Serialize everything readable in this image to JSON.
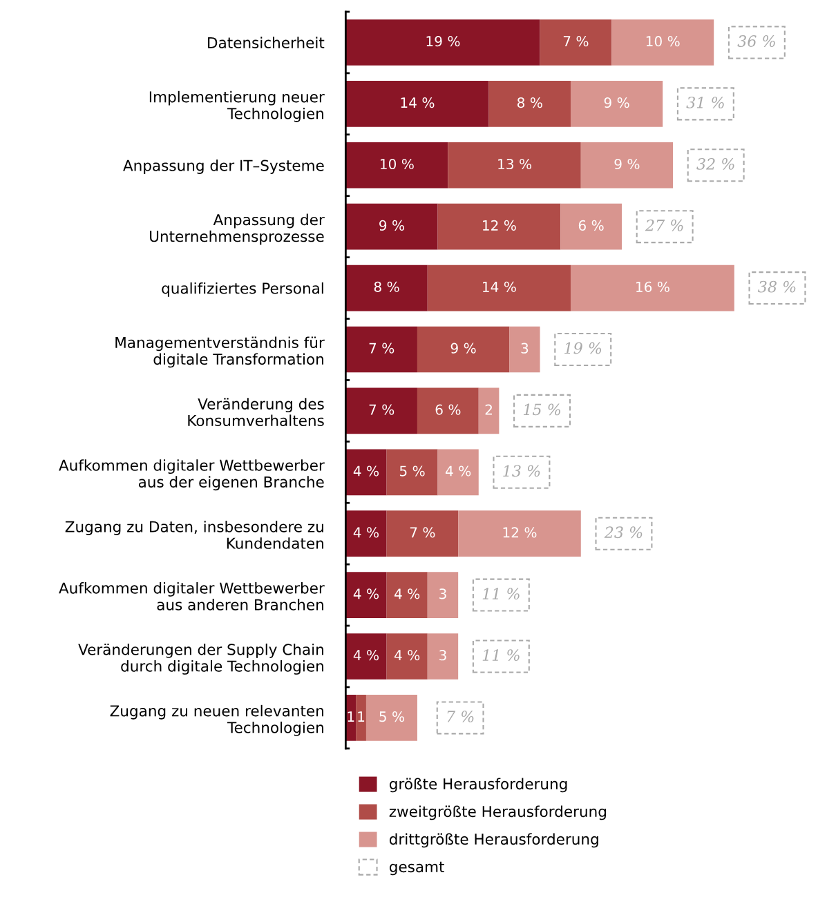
{
  "chart_data": {
    "type": "bar",
    "orientation": "horizontal",
    "stacked": true,
    "categories": [
      "Datensicherheit",
      "Implementierung neuer\nTechnologien",
      "Anpassung der IT–Systeme",
      "Anpassung der\nUnternehmensprozesse",
      "qualifiziertes Personal",
      "Managementverständnis für\ndigitale Transformation",
      "Veränderung des\nKonsumverhaltens",
      "Aufkommen digitaler Wettbewerber\naus der eigenen Branche",
      "Zugang zu Daten, insbesondere zu\nKundendaten",
      "Aufkommen digitaler Wettbewerber\naus anderen Branchen",
      "Veränderungen der Supply Chain\ndurch digitale Technologien",
      "Zugang zu neuen relevanten\nTechnologien"
    ],
    "series": [
      {
        "name": "größte Herausforderung",
        "color": "#8a1526",
        "values": [
          19,
          14,
          10,
          9,
          8,
          7,
          7,
          4,
          4,
          4,
          4,
          1
        ],
        "value_labels": [
          "19 %",
          "14 %",
          "10 %",
          "9 %",
          "8 %",
          "7 %",
          "7 %",
          "4 %",
          "4 %",
          "4 %",
          "4 %",
          "1"
        ]
      },
      {
        "name": "zweitgrößte Herausforderung",
        "color": "#b04c48",
        "values": [
          7,
          8,
          13,
          12,
          14,
          9,
          6,
          5,
          7,
          4,
          4,
          1
        ],
        "value_labels": [
          "7 %",
          "8 %",
          "13 %",
          "12 %",
          "14 %",
          "9 %",
          "6 %",
          "5 %",
          "7 %",
          "4 %",
          "4 %",
          "1"
        ]
      },
      {
        "name": "drittgrößte Herausforderung",
        "color": "#d8958f",
        "values": [
          10,
          9,
          9,
          6,
          16,
          3,
          2,
          4,
          12,
          3,
          3,
          5
        ],
        "value_labels": [
          "10 %",
          "9 %",
          "9 %",
          "6 %",
          "16 %",
          "3",
          "2",
          "4 %",
          "12 %",
          "3",
          "3",
          "5 %"
        ]
      }
    ],
    "totals": [
      "36 %",
      "31 %",
      "32 %",
      "27 %",
      "38 %",
      "19 %",
      "15 %",
      "13 %",
      "23 %",
      "11 %",
      "11 %",
      "7 %"
    ],
    "annotations": [
      "gesamt"
    ],
    "tick_labels": "y",
    "grid": false,
    "legend": "bottom"
  }
}
